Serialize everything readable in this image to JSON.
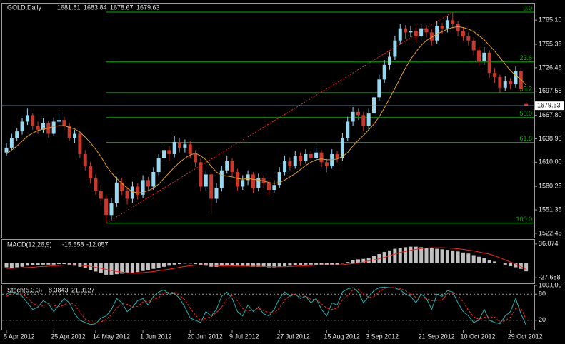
{
  "chart_data": {
    "type": "candlestick",
    "symbol": "GOLD,Daily",
    "categories": [
      "5 Apr 2012",
      null,
      null,
      null,
      null,
      null,
      null,
      null,
      null,
      "25 Apr 2012",
      null,
      null,
      null,
      null,
      null,
      null,
      null,
      "14 May 2012",
      null,
      null,
      null,
      null,
      null,
      null,
      null,
      null,
      "1 Jun 2012",
      null,
      null,
      null,
      null,
      null,
      null,
      null,
      null,
      "20 Jun 2012",
      null,
      null,
      null,
      null,
      null,
      null,
      null,
      "9 Jul 2012",
      null,
      null,
      null,
      null,
      null,
      null,
      null,
      null,
      "27 Jul 2012",
      null,
      null,
      null,
      null,
      null,
      null,
      null,
      null,
      "15 Aug 2012",
      null,
      null,
      null,
      null,
      null,
      null,
      null,
      "3 Sep 2012",
      null,
      null,
      null,
      null,
      null,
      null,
      null,
      null,
      null,
      "21 Sep 2012",
      null,
      null,
      null,
      null,
      null,
      null,
      null,
      "10 Oct 2012",
      null,
      null,
      null,
      null,
      null,
      null,
      null,
      null,
      "29 Oct 2012",
      null,
      null,
      null
    ],
    "ohlc": [
      [
        1622,
        1634,
        1618,
        1628
      ],
      [
        1628,
        1645,
        1625,
        1640
      ],
      [
        1640,
        1652,
        1636,
        1648
      ],
      [
        1648,
        1664,
        1644,
        1660
      ],
      [
        1660,
        1676,
        1656,
        1668
      ],
      [
        1668,
        1670,
        1650,
        1655
      ],
      [
        1655,
        1660,
        1645,
        1650
      ],
      [
        1650,
        1664,
        1646,
        1658
      ],
      [
        1658,
        1661,
        1640,
        1645
      ],
      [
        1645,
        1665,
        1642,
        1660
      ],
      [
        1660,
        1670,
        1655,
        1662
      ],
      [
        1662,
        1666,
        1650,
        1655
      ],
      [
        1655,
        1658,
        1636,
        1640
      ],
      [
        1640,
        1650,
        1634,
        1645
      ],
      [
        1645,
        1648,
        1615,
        1620
      ],
      [
        1620,
        1625,
        1600,
        1605
      ],
      [
        1605,
        1610,
        1584,
        1590
      ],
      [
        1590,
        1595,
        1570,
        1575
      ],
      [
        1575,
        1582,
        1558,
        1565
      ],
      [
        1565,
        1570,
        1535,
        1545
      ],
      [
        1545,
        1566,
        1540,
        1560
      ],
      [
        1560,
        1592,
        1555,
        1585
      ],
      [
        1585,
        1590,
        1570,
        1575
      ],
      [
        1575,
        1580,
        1558,
        1565
      ],
      [
        1565,
        1586,
        1560,
        1580
      ],
      [
        1580,
        1584,
        1564,
        1570
      ],
      [
        1570,
        1594,
        1566,
        1588
      ],
      [
        1588,
        1592,
        1574,
        1580
      ],
      [
        1580,
        1604,
        1576,
        1598
      ],
      [
        1598,
        1620,
        1594,
        1615
      ],
      [
        1615,
        1632,
        1610,
        1625
      ],
      [
        1625,
        1630,
        1612,
        1620
      ],
      [
        1620,
        1642,
        1616,
        1635
      ],
      [
        1635,
        1640,
        1622,
        1628
      ],
      [
        1628,
        1638,
        1622,
        1632
      ],
      [
        1632,
        1636,
        1615,
        1620
      ],
      [
        1620,
        1625,
        1604,
        1610
      ],
      [
        1610,
        1614,
        1574,
        1580
      ],
      [
        1580,
        1600,
        1575,
        1595
      ],
      [
        1595,
        1598,
        1546,
        1565
      ],
      [
        1565,
        1584,
        1560,
        1578
      ],
      [
        1578,
        1606,
        1574,
        1600
      ],
      [
        1600,
        1618,
        1596,
        1612
      ],
      [
        1612,
        1615,
        1592,
        1598
      ],
      [
        1598,
        1602,
        1575,
        1580
      ],
      [
        1580,
        1594,
        1576,
        1588
      ],
      [
        1588,
        1600,
        1582,
        1595
      ],
      [
        1595,
        1598,
        1572,
        1578
      ],
      [
        1578,
        1596,
        1574,
        1590
      ],
      [
        1590,
        1594,
        1578,
        1584
      ],
      [
        1584,
        1588,
        1570,
        1576
      ],
      [
        1576,
        1588,
        1572,
        1582
      ],
      [
        1582,
        1604,
        1578,
        1598
      ],
      [
        1598,
        1618,
        1594,
        1612
      ],
      [
        1612,
        1616,
        1600,
        1605
      ],
      [
        1605,
        1624,
        1602,
        1618
      ],
      [
        1618,
        1622,
        1606,
        1612
      ],
      [
        1612,
        1626,
        1608,
        1620
      ],
      [
        1620,
        1624,
        1610,
        1615
      ],
      [
        1615,
        1628,
        1612,
        1622
      ],
      [
        1622,
        1625,
        1604,
        1610
      ],
      [
        1610,
        1614,
        1598,
        1605
      ],
      [
        1605,
        1626,
        1602,
        1620
      ],
      [
        1620,
        1624,
        1610,
        1615
      ],
      [
        1615,
        1646,
        1612,
        1640
      ],
      [
        1640,
        1666,
        1636,
        1660
      ],
      [
        1660,
        1678,
        1655,
        1672
      ],
      [
        1672,
        1676,
        1662,
        1668
      ],
      [
        1668,
        1672,
        1648,
        1655
      ],
      [
        1655,
        1676,
        1650,
        1670
      ],
      [
        1670,
        1696,
        1665,
        1690
      ],
      [
        1690,
        1718,
        1686,
        1712
      ],
      [
        1712,
        1736,
        1708,
        1730
      ],
      [
        1730,
        1746,
        1724,
        1740
      ],
      [
        1740,
        1766,
        1736,
        1760
      ],
      [
        1760,
        1780,
        1755,
        1775
      ],
      [
        1775,
        1779,
        1762,
        1770
      ],
      [
        1770,
        1778,
        1764,
        1772
      ],
      [
        1772,
        1776,
        1758,
        1765
      ],
      [
        1765,
        1780,
        1760,
        1775
      ],
      [
        1775,
        1779,
        1764,
        1770
      ],
      [
        1770,
        1774,
        1754,
        1760
      ],
      [
        1760,
        1784,
        1756,
        1778
      ],
      [
        1778,
        1782,
        1768,
        1775
      ],
      [
        1775,
        1790,
        1770,
        1785
      ],
      [
        1785,
        1795,
        1775,
        1780
      ],
      [
        1780,
        1784,
        1766,
        1772
      ],
      [
        1772,
        1776,
        1760,
        1765
      ],
      [
        1765,
        1770,
        1754,
        1760
      ],
      [
        1760,
        1764,
        1742,
        1748
      ],
      [
        1748,
        1752,
        1730,
        1735
      ],
      [
        1735,
        1752,
        1730,
        1745
      ],
      [
        1745,
        1748,
        1714,
        1720
      ],
      [
        1720,
        1726,
        1708,
        1715
      ],
      [
        1715,
        1718,
        1696,
        1702
      ],
      [
        1702,
        1716,
        1698,
        1710
      ],
      [
        1710,
        1714,
        1700,
        1706
      ],
      [
        1706,
        1728,
        1702,
        1722
      ],
      [
        1722,
        1726,
        1694,
        1700
      ],
      [
        1681.81,
        1683.84,
        1678.67,
        1679.63
      ]
    ],
    "bull_color": "#9ad8f0",
    "bear_color": "#c8382c",
    "ylim": [
      1517.1,
      1805.5
    ],
    "yticks": [
      {
        "value": 1785.1,
        "label": "1785.10"
      },
      {
        "value": 1755.35,
        "label": "1755.35"
      },
      {
        "value": 1726.45,
        "label": "1726.45"
      },
      {
        "value": 1697.55,
        "label": "1697.55"
      },
      {
        "value": 1667.8,
        "label": "1667.80"
      },
      {
        "value": 1638.9,
        "label": "1638.90"
      },
      {
        "value": 1610.0,
        "label": "1610.00"
      },
      {
        "value": 1580.25,
        "label": "1580.25"
      },
      {
        "value": 1551.35,
        "label": "1551.35"
      },
      {
        "value": 1522.45,
        "label": "1522.45"
      }
    ],
    "moving_average": {
      "color": "#e0a020",
      "values": [
        1620,
        1625,
        1630,
        1636,
        1642,
        1646,
        1649,
        1651,
        1652,
        1654,
        1655,
        1655,
        1653,
        1651,
        1647,
        1641,
        1634,
        1626,
        1617,
        1606,
        1597,
        1590,
        1584,
        1578,
        1574,
        1572,
        1573,
        1575,
        1578,
        1583,
        1590,
        1597,
        1604,
        1610,
        1615,
        1619,
        1621,
        1618,
        1613,
        1605,
        1598,
        1594,
        1593,
        1592,
        1590,
        1589,
        1590,
        1589,
        1588,
        1587,
        1585,
        1584,
        1585,
        1588,
        1592,
        1596,
        1601,
        1606,
        1610,
        1613,
        1614,
        1613,
        1613,
        1614,
        1617,
        1622,
        1630,
        1637,
        1643,
        1650,
        1657,
        1666,
        1677,
        1689,
        1701,
        1714,
        1726,
        1737,
        1746,
        1754,
        1760,
        1764,
        1768,
        1771,
        1774,
        1776,
        1777,
        1776,
        1774,
        1771,
        1766,
        1761,
        1754,
        1747,
        1739,
        1731,
        1723,
        1717,
        1712,
        1705
      ]
    },
    "fibonacci": {
      "color": "#00b400",
      "levels": [
        {
          "value": 0,
          "label": "0.0"
        },
        23.6,
        38.2,
        {
          "value": 50,
          "label": "50.0"
        },
        61.8,
        {
          "value": 100,
          "label": "100.0"
        }
      ]
    },
    "macd": {
      "label": "MACD(12,26,9)",
      "ylim": [
        -38.3,
        44.0
      ],
      "yticks": [
        36.074,
        -27.688
      ],
      "histogram": {
        "color": "#c0c0c0",
        "values": [
          -8,
          -9,
          -8,
          -7,
          -5,
          -4,
          -4,
          -3,
          -3,
          -3,
          -2,
          -2,
          -3,
          -5,
          -7,
          -10,
          -13,
          -16,
          -19,
          -22,
          -22,
          -21,
          -20,
          -19,
          -18,
          -17,
          -15,
          -13,
          -11,
          -9,
          -7,
          -5,
          -3,
          -2,
          -1,
          -1,
          -2,
          -4,
          -5,
          -7,
          -7,
          -6,
          -5,
          -5,
          -6,
          -6,
          -6,
          -7,
          -7,
          -7,
          -8,
          -8,
          -7,
          -6,
          -5,
          -4,
          -4,
          -3,
          -3,
          -3,
          -3,
          -4,
          -3,
          -3,
          -1,
          2,
          5,
          7,
          8,
          10,
          13,
          17,
          21,
          24,
          27,
          29,
          30,
          31,
          31,
          30,
          29,
          28,
          27,
          26,
          25,
          24,
          22,
          20,
          18,
          15,
          12,
          10,
          6,
          3,
          0,
          -3,
          -6,
          -8,
          -11,
          -15.558
        ]
      },
      "signal": {
        "color": "#ff2020",
        "values": [
          -10,
          -10,
          -9.5,
          -9,
          -8.5,
          -8,
          -7,
          -6.5,
          -6,
          -5,
          -4.5,
          -4,
          -3.5,
          -3.5,
          -4,
          -5,
          -6,
          -8,
          -10,
          -12,
          -14,
          -16,
          -17,
          -18,
          -18.5,
          -18.5,
          -18,
          -17,
          -16,
          -14.5,
          -13,
          -11.5,
          -10,
          -8,
          -6.5,
          -5,
          -4,
          -3.5,
          -3.5,
          -4,
          -4.5,
          -5,
          -5,
          -5,
          -5.5,
          -5.5,
          -6,
          -6,
          -6,
          -6.5,
          -6.5,
          -7,
          -7,
          -7,
          -6.5,
          -6,
          -5.5,
          -5,
          -4.5,
          -4,
          -3.5,
          -3.5,
          -3.5,
          -3.5,
          -3,
          -2,
          -1,
          0.5,
          2,
          4,
          6,
          8,
          11,
          14,
          17,
          20,
          22,
          24,
          26,
          27.5,
          28.5,
          29,
          29,
          29,
          28.5,
          28,
          27,
          26,
          24.5,
          23,
          21,
          19,
          17,
          14,
          10,
          6,
          2,
          -2,
          -7,
          -12.057
        ]
      }
    },
    "stochastic": {
      "label": "Stoch(5,3,3)",
      "ylim": [
        0,
        100
      ],
      "yticks": [
        {
          "value": 100,
          "label": "100.000"
        },
        80,
        20
      ],
      "k": {
        "color": "#20b2aa",
        "values": [
          80,
          85,
          82,
          75,
          60,
          45,
          50,
          65,
          58,
          40,
          55,
          70,
          60,
          35,
          20,
          15,
          10,
          12,
          25,
          30,
          45,
          70,
          60,
          40,
          50,
          65,
          70,
          55,
          75,
          85,
          90,
          80,
          82,
          70,
          50,
          25,
          20,
          15,
          40,
          30,
          45,
          75,
          85,
          70,
          40,
          30,
          55,
          40,
          50,
          35,
          30,
          45,
          70,
          85,
          75,
          80,
          70,
          75,
          60,
          70,
          45,
          30,
          60,
          55,
          85,
          92,
          95,
          85,
          60,
          75,
          88,
          95,
          96,
          95,
          94,
          90,
          80,
          75,
          60,
          80,
          70,
          45,
          80,
          75,
          88,
          85,
          60,
          40,
          30,
          15,
          20,
          45,
          20,
          15,
          12,
          30,
          40,
          70,
          35,
          8.3843
        ]
      },
      "d": {
        "color": "#ff2020",
        "values": [
          75,
          80,
          82,
          80,
          72,
          60,
          52,
          53,
          58,
          54,
          51,
          55,
          62,
          55,
          38,
          23,
          15,
          12,
          16,
          22,
          33,
          48,
          58,
          57,
          50,
          52,
          62,
          63,
          67,
          72,
          83,
          85,
          84,
          77,
          67,
          48,
          32,
          20,
          25,
          28,
          38,
          50,
          68,
          77,
          65,
          47,
          42,
          42,
          48,
          42,
          38,
          37,
          48,
          67,
          77,
          80,
          75,
          75,
          68,
          68,
          58,
          48,
          45,
          48,
          67,
          77,
          90,
          91,
          80,
          73,
          74,
          86,
          93,
          95,
          95,
          93,
          88,
          82,
          72,
          72,
          70,
          65,
          65,
          67,
          81,
          83,
          78,
          62,
          43,
          28,
          22,
          27,
          28,
          27,
          16,
          19,
          27,
          47,
          48,
          21.3127
        ]
      }
    }
  }
}
